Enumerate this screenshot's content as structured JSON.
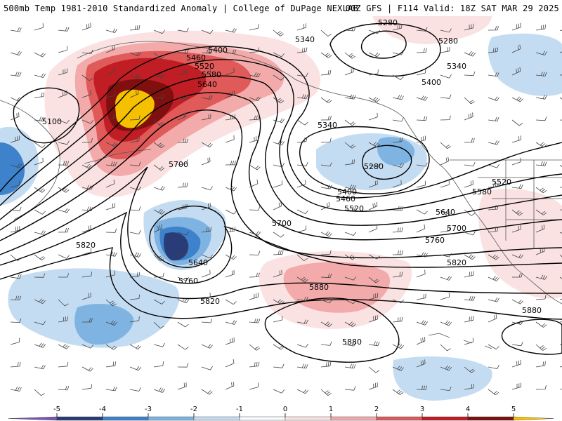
{
  "header": {
    "left_title": "500mb Temp 1981-2010 Standardized Anomaly | College of DuPage NEXLAB",
    "right_title": "00Z GFS | F114 Valid: 18Z SAT MAR 29 2025"
  },
  "contour_labels": [
    "5280",
    "5340",
    "5400",
    "5460",
    "5520",
    "5580",
    "5640",
    "5700",
    "5760",
    "5820",
    "5880",
    "5100"
  ],
  "colorbar": {
    "ticks": [
      "-5",
      "-4",
      "-3",
      "-2",
      "-1",
      "0",
      "1",
      "2",
      "3",
      "4",
      "5"
    ],
    "colors": [
      "#7b55b0",
      "#2a3c78",
      "#3f82cc",
      "#7fb4e2",
      "#c4dcf2",
      "#f8fbff",
      "#fbe2e2",
      "#f2aaaa",
      "#e05a5a",
      "#c01e24",
      "#801010",
      "#f5c000"
    ]
  }
}
